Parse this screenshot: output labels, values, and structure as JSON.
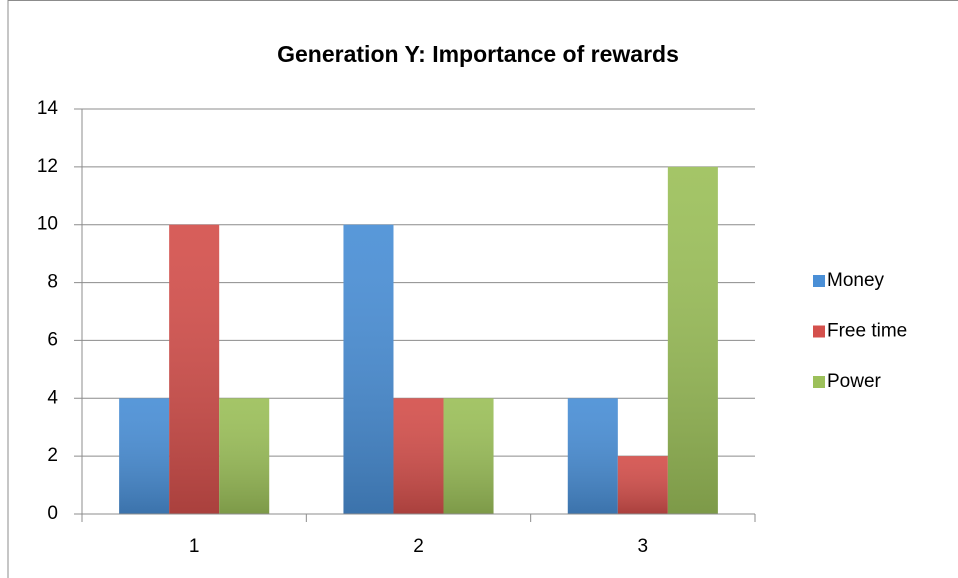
{
  "chart_data": {
    "type": "bar",
    "title": "Generation Y: Importance of rewards",
    "categories": [
      "1",
      "2",
      "3"
    ],
    "series": [
      {
        "name": "Money",
        "color": "#4a8fd6",
        "values": [
          4,
          10,
          4
        ]
      },
      {
        "name": "Free time",
        "color": "#d4504c",
        "values": [
          10,
          4,
          2
        ]
      },
      {
        "name": "Power",
        "color": "#9cc05a",
        "values": [
          4,
          4,
          12
        ]
      }
    ],
    "ylim": [
      0,
      14
    ],
    "yticks": [
      0,
      2,
      4,
      6,
      8,
      10,
      12,
      14
    ],
    "grid": true,
    "legend": "right"
  }
}
